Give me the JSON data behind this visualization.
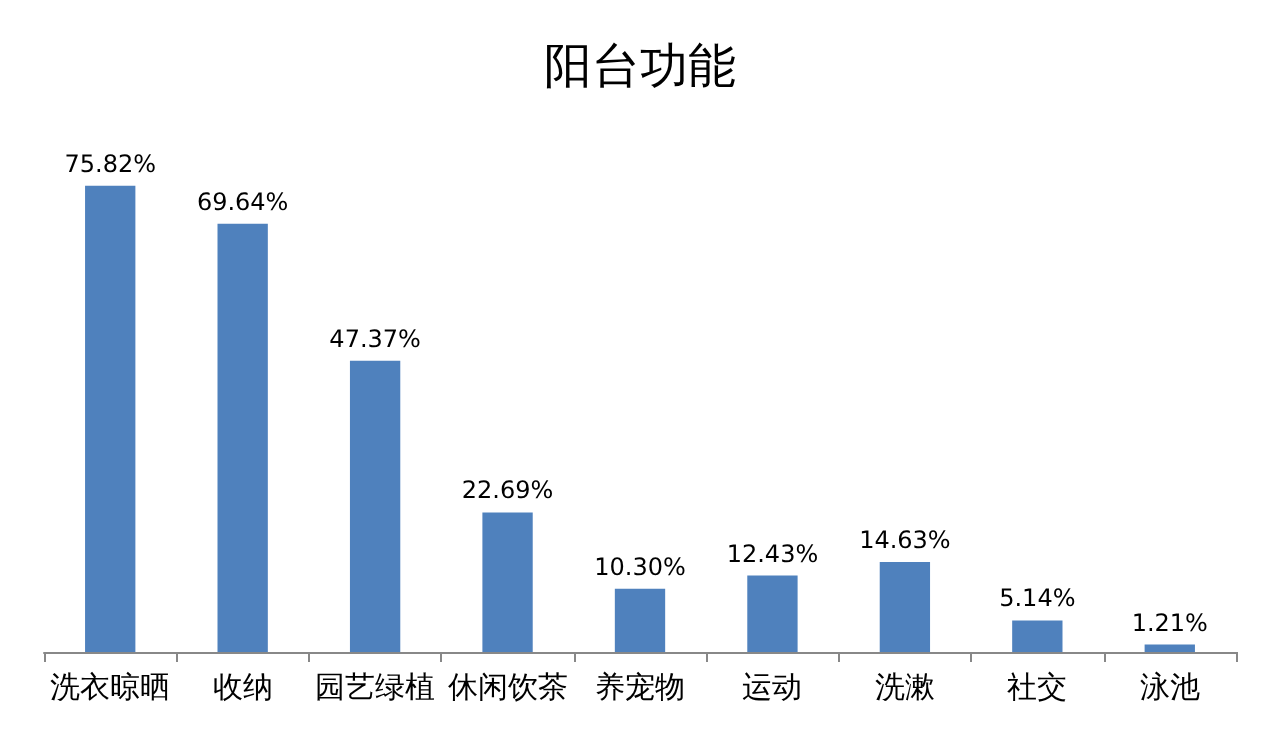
{
  "chart_data": {
    "type": "bar",
    "title": "阳台功能",
    "categories": [
      "洗衣晾晒",
      "收纳",
      "园艺绿植",
      "休闲饮茶",
      "养宠物",
      "运动",
      "洗漱",
      "社交",
      "泳池"
    ],
    "values": [
      75.82,
      69.64,
      47.37,
      22.69,
      10.3,
      12.43,
      14.63,
      5.14,
      1.21
    ],
    "value_labels": [
      "75.82%",
      "69.64%",
      "47.37%",
      "22.69%",
      "10.30%",
      "12.43%",
      "14.63%",
      "5.14%",
      "1.21%"
    ],
    "color": "#4f81bd"
  }
}
